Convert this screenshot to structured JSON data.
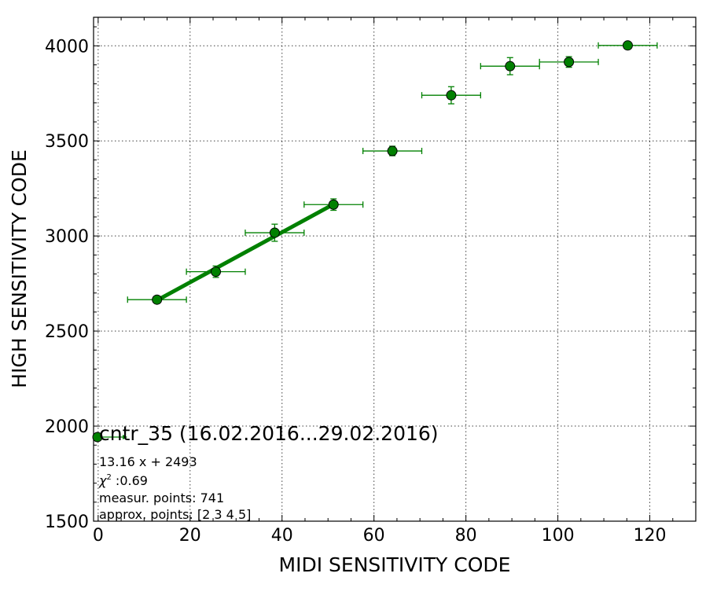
{
  "chart_data": {
    "type": "scatter",
    "xlabel": "MIDI SENSITIVITY CODE",
    "ylabel": "HIGH SENSITIVITY CODE",
    "xlim": [
      -1,
      130
    ],
    "ylim": [
      1500,
      4150
    ],
    "xticks": [
      0,
      20,
      40,
      60,
      80,
      100,
      120
    ],
    "yticks": [
      1500,
      2000,
      2500,
      3000,
      3500,
      4000
    ],
    "xtick_labels": [
      "0",
      "20",
      "40",
      "60",
      "80",
      "100",
      "120"
    ],
    "ytick_labels": [
      "1500",
      "2000",
      "2500",
      "3000",
      "3500",
      "4000"
    ],
    "grid": true,
    "series": [
      {
        "name": "cntr_35 (16.02.2016...29.02.2016)",
        "color": "#008000",
        "points": [
          {
            "x": 12.8,
            "y": 2665,
            "xerr": 6.4,
            "yerr": 15
          },
          {
            "x": 25.6,
            "y": 2812,
            "xerr": 6.4,
            "yerr": 30
          },
          {
            "x": 38.4,
            "y": 3017,
            "xerr": 6.4,
            "yerr": 45
          },
          {
            "x": 51.2,
            "y": 3165,
            "xerr": 6.4,
            "yerr": 30
          },
          {
            "x": 64.0,
            "y": 3447,
            "xerr": 6.4,
            "yerr": 25
          },
          {
            "x": 76.8,
            "y": 3740,
            "xerr": 6.4,
            "yerr": 45
          },
          {
            "x": 89.6,
            "y": 3893,
            "xerr": 6.4,
            "yerr": 45
          },
          {
            "x": 102.4,
            "y": 3915,
            "xerr": 6.4,
            "yerr": 28
          },
          {
            "x": 115.2,
            "y": 4002,
            "xerr": 6.4,
            "yerr": 10
          }
        ]
      }
    ],
    "fit": {
      "slope": 13.16,
      "intercept": 2493,
      "x_range": [
        12.8,
        51.2
      ]
    },
    "legend": {
      "label": "cntr_35 (16.02.2016...29.02.2016)",
      "placement": "lower-left",
      "annotations": {
        "equation": "13.16 x + 2493",
        "chi2_symbol": "χ",
        "chi2_exp": "2",
        "chi2_value": " :0.69",
        "measur": "measur. points: 741",
        "approx": "approx. points: [2 3 4 5]"
      }
    }
  }
}
